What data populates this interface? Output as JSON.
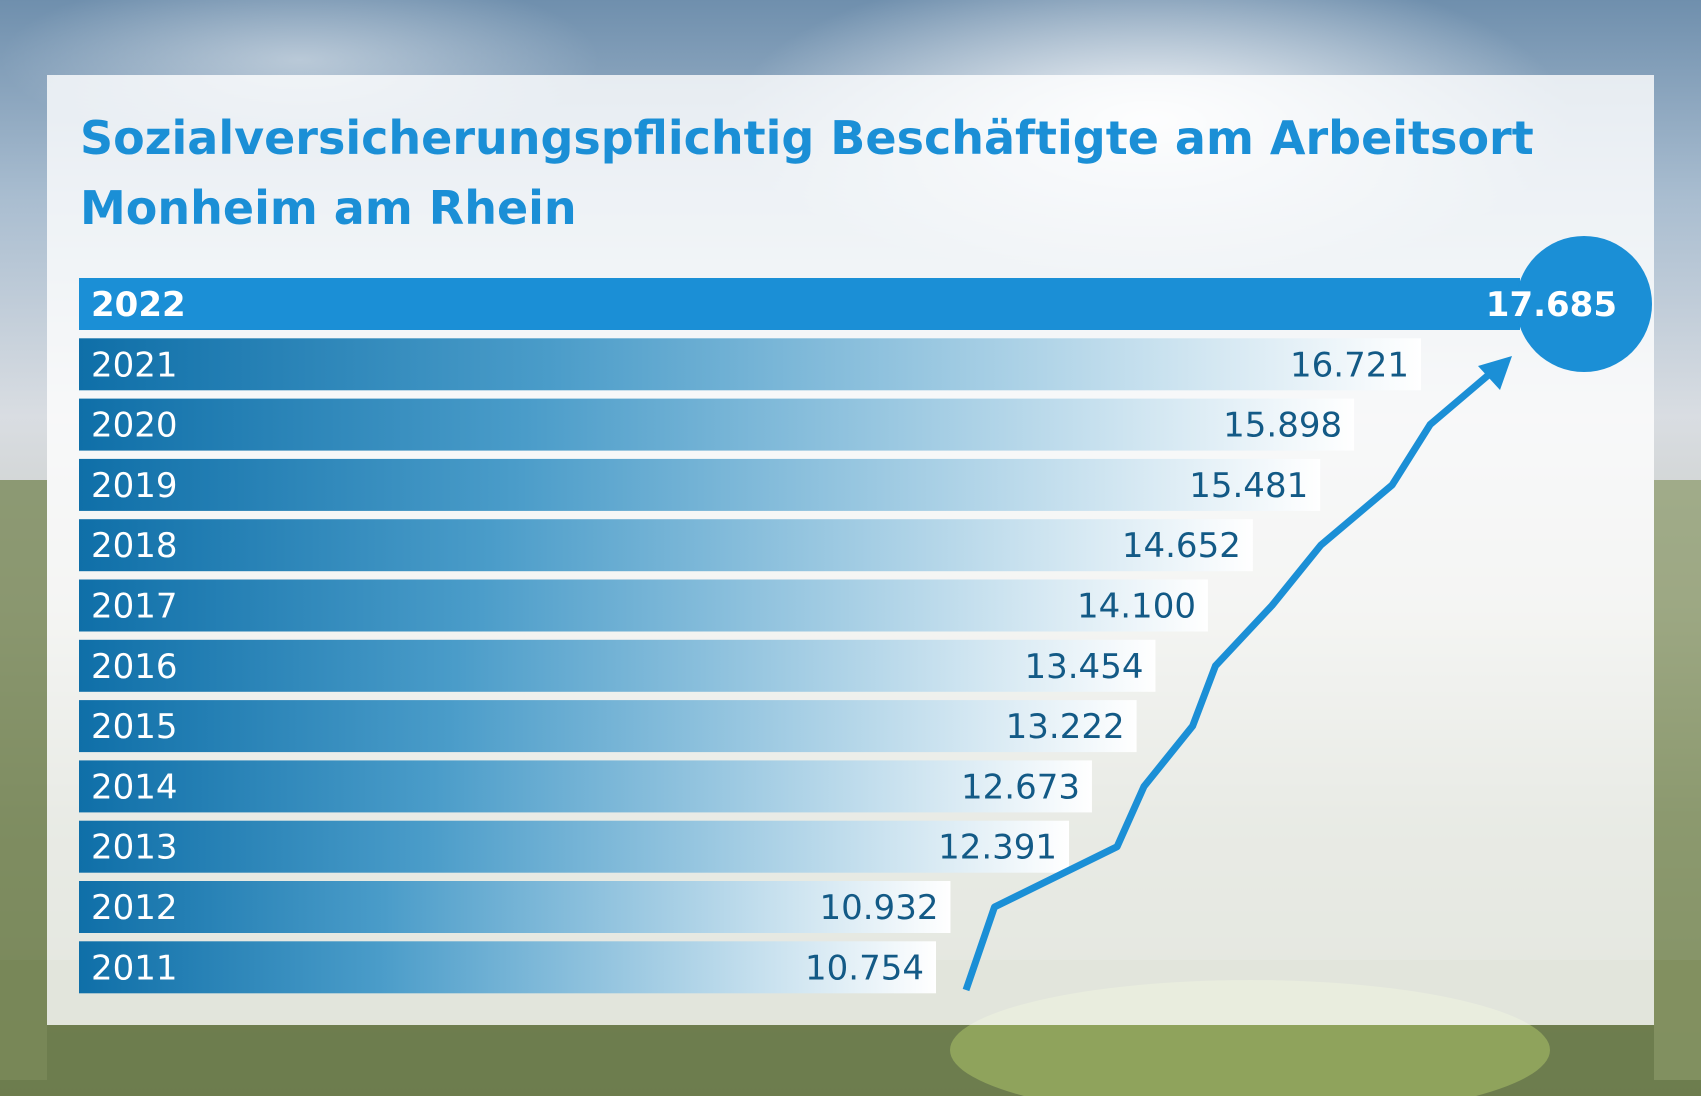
{
  "chart_data": {
    "type": "bar",
    "orientation": "horizontal",
    "title": "Sozialversicherungspflichtig Beschäftigte am Arbeitsort Monheim am Rhein",
    "categories": [
      "2022",
      "2021",
      "2020",
      "2019",
      "2018",
      "2017",
      "2016",
      "2015",
      "2014",
      "2013",
      "2012",
      "2011"
    ],
    "values": [
      17685,
      16721,
      15898,
      15481,
      14652,
      14100,
      13454,
      13222,
      12673,
      12391,
      10932,
      10754
    ],
    "value_labels": [
      "17.685",
      "16.721",
      "15.898",
      "15.481",
      "14.652",
      "14.100",
      "13.454",
      "13.222",
      "12.673",
      "12.391",
      "10.932",
      "10.754"
    ],
    "highlight": "2022",
    "trend_arrow": true,
    "colors": {
      "accent": "#1b8fd6",
      "bar_dark": "#0f6fa8",
      "bar_light": "#ffffff",
      "value_text": "#135a86",
      "title": "#1b8fd6"
    }
  }
}
